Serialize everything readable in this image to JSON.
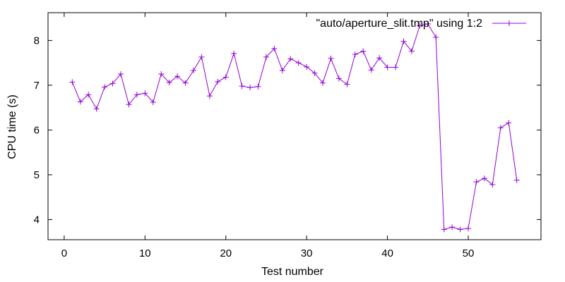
{
  "chart_data": {
    "type": "line",
    "title": "",
    "xlabel": "Test number",
    "ylabel": "CPU time (s)",
    "xlim": [
      -2,
      59
    ],
    "ylim": [
      3.55,
      8.62
    ],
    "xticks": [
      0,
      10,
      20,
      30,
      40,
      50
    ],
    "yticks": [
      4,
      5,
      6,
      7,
      8
    ],
    "grid": false,
    "legend_position": "top-right",
    "series": [
      {
        "name": "\"auto/aperture_slit.tmp\" using 1:2",
        "color": "#9400d3",
        "marker": "plus",
        "x": [
          1,
          2,
          3,
          4,
          5,
          6,
          7,
          8,
          9,
          10,
          11,
          12,
          13,
          14,
          15,
          16,
          17,
          18,
          19,
          20,
          21,
          22,
          23,
          24,
          25,
          26,
          27,
          28,
          29,
          30,
          31,
          32,
          33,
          34,
          35,
          36,
          37,
          38,
          39,
          40,
          41,
          42,
          43,
          44,
          45,
          46,
          47,
          48,
          49,
          50,
          51,
          52,
          53,
          54,
          55,
          56
        ],
        "y": [
          7.07,
          6.63,
          6.79,
          6.47,
          6.96,
          7.04,
          7.25,
          6.57,
          6.79,
          6.82,
          6.62,
          7.25,
          7.06,
          7.2,
          7.05,
          7.33,
          7.63,
          6.76,
          7.08,
          7.18,
          7.71,
          6.98,
          6.95,
          6.97,
          7.63,
          7.82,
          7.33,
          7.59,
          7.5,
          7.41,
          7.27,
          7.05,
          7.6,
          7.15,
          7.02,
          7.69,
          7.76,
          7.34,
          7.61,
          7.4,
          7.4,
          7.98,
          7.76,
          8.33,
          8.37,
          8.07,
          3.78,
          3.83,
          3.78,
          3.8,
          4.84,
          4.92,
          4.78,
          6.05,
          6.16,
          4.88
        ]
      }
    ]
  }
}
